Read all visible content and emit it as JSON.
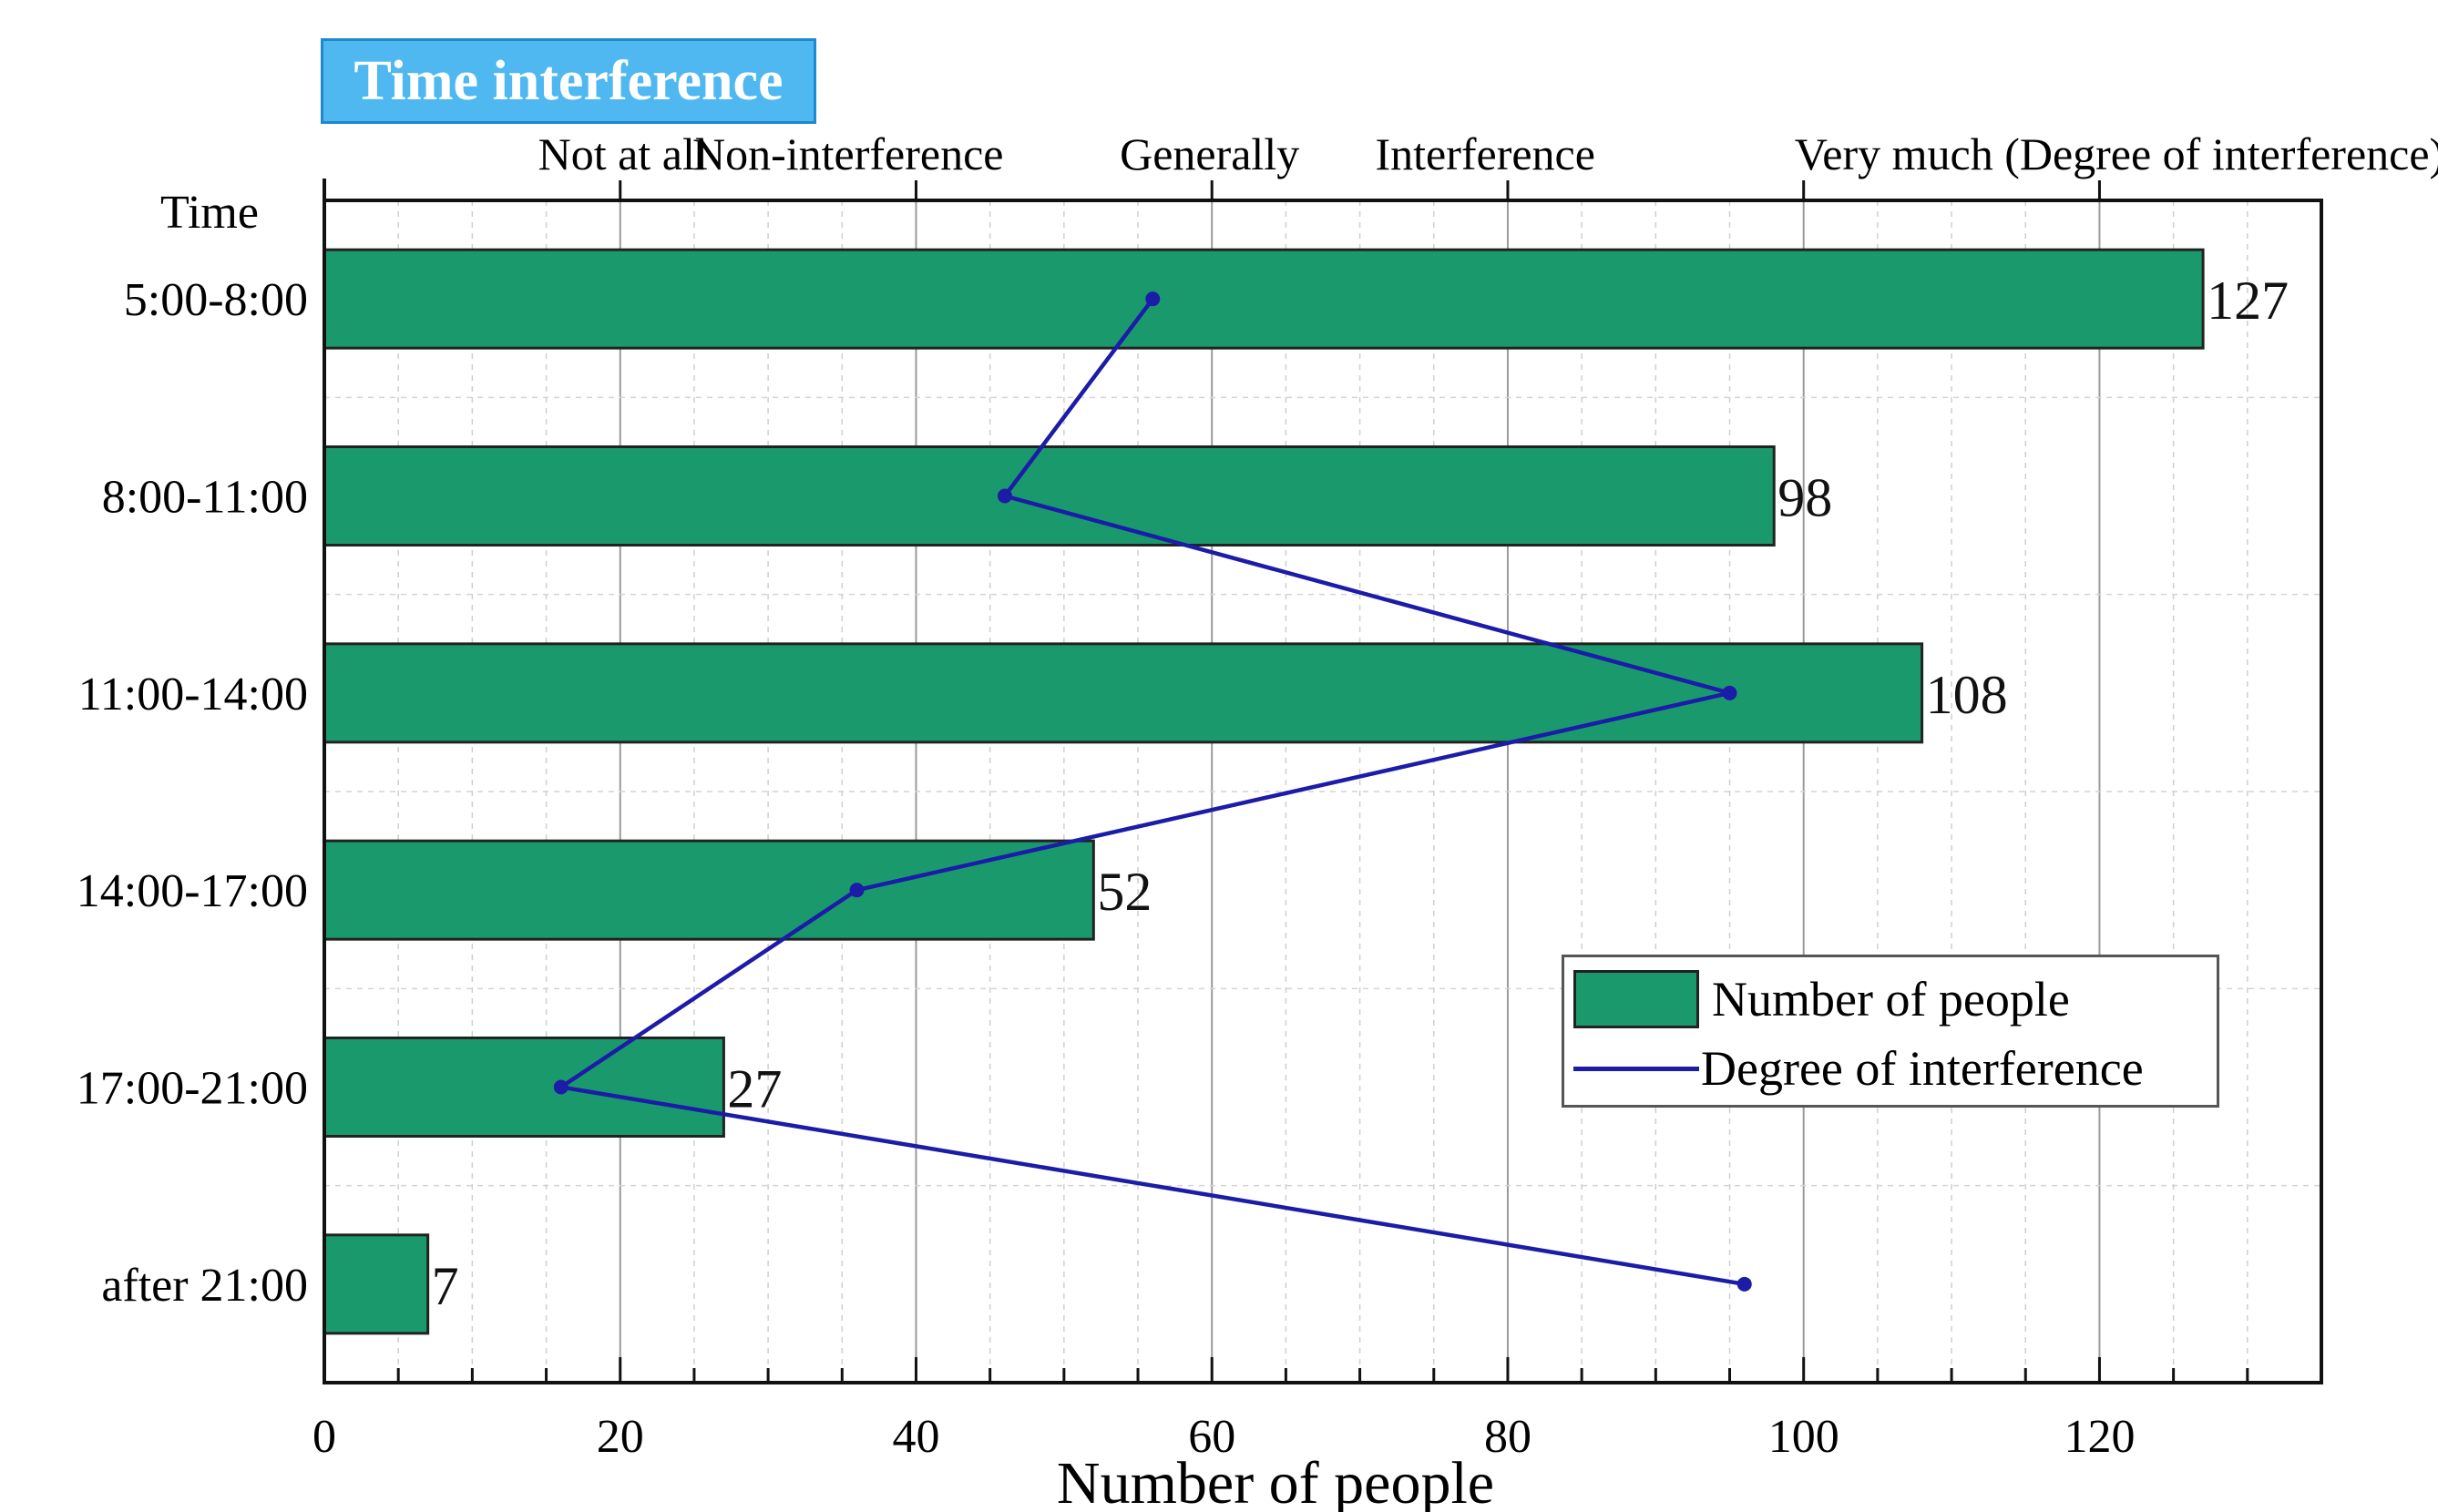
{
  "chart_data": {
    "type": "bar",
    "orientation": "horizontal",
    "title": "Time interference",
    "categories": [
      "5:00-8:00",
      "8:00-11:00",
      "11:00-14:00",
      "14:00-17:00",
      "17:00-21:00",
      "after 21:00"
    ],
    "series": [
      {
        "name": "Number of people",
        "type": "bar",
        "values": [
          127,
          98,
          108,
          52,
          27,
          7
        ]
      },
      {
        "name": "Degree of interference",
        "type": "line",
        "values": [
          56,
          46,
          95,
          36,
          16,
          96
        ]
      }
    ],
    "data_labels": [
      "127",
      "98",
      "108",
      "52",
      "27",
      "7"
    ],
    "xlabel": "Number of people",
    "ylabel": "Time",
    "xlim": [
      0,
      135
    ],
    "x_ticks": [
      0,
      20,
      40,
      60,
      80,
      100,
      120
    ],
    "x_tick_labels": [
      "0",
      "20",
      "40",
      "60",
      "80",
      "100",
      "120"
    ],
    "top_axis_labels": [
      {
        "text": "Not at all",
        "value": 20
      },
      {
        "text": "Non-interference",
        "value": 40
      },
      {
        "text": "Generally",
        "value": 60
      },
      {
        "text": "Interference",
        "value": 80
      },
      {
        "text": "Very much (Degree of interference)",
        "value": 100
      }
    ],
    "grid": true,
    "legend": {
      "position": "bottom-right",
      "entries": [
        "Number of people",
        "Degree of interference"
      ]
    },
    "colors": {
      "bar": "#1a9a6c",
      "line": "#1c1ca8",
      "title_bg": "#4fb8f0"
    }
  }
}
